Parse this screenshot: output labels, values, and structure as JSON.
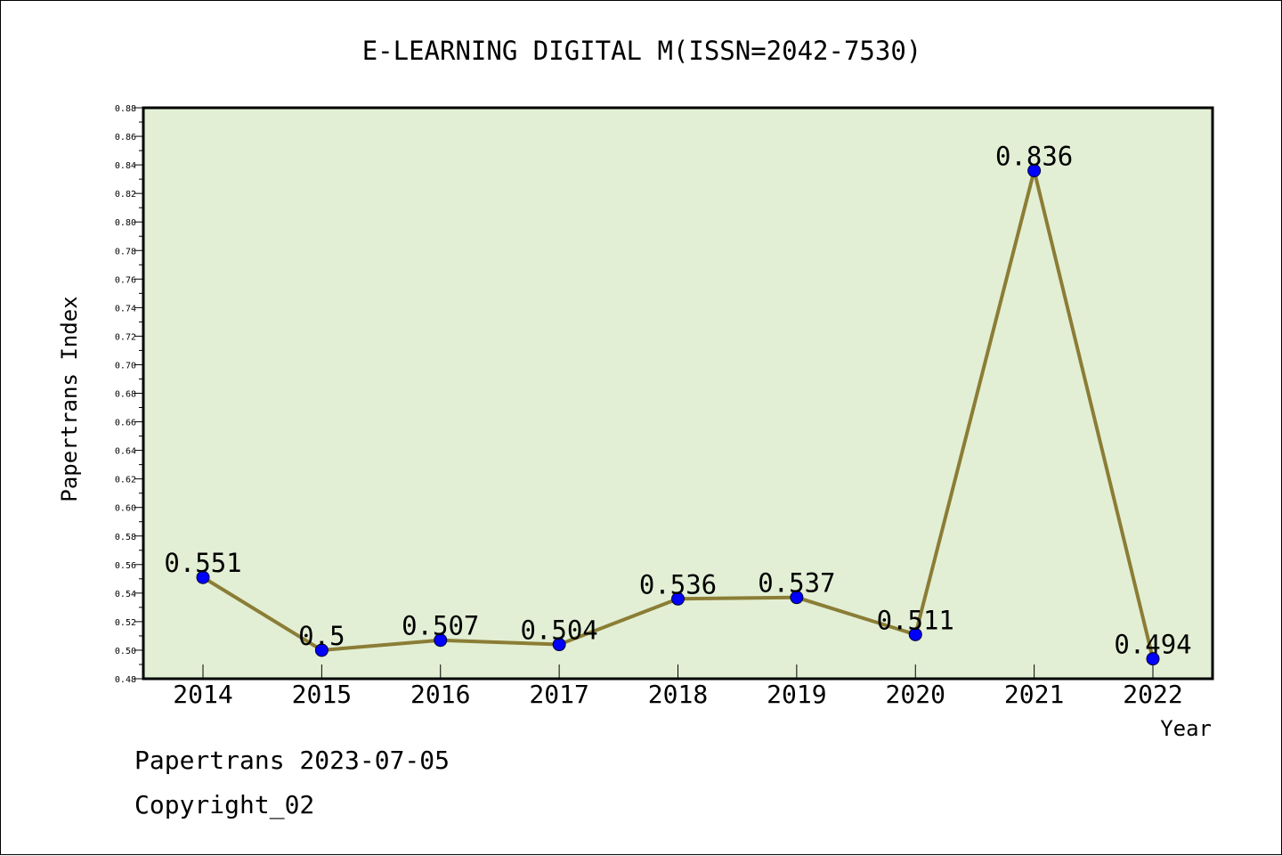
{
  "chart_data": {
    "type": "line",
    "title": "E-LEARNING DIGITAL M(ISSN=2042-7530)",
    "xlabel": "Year",
    "ylabel": "Papertrans Index",
    "categories": [
      "2014",
      "2015",
      "2016",
      "2017",
      "2018",
      "2019",
      "2020",
      "2021",
      "2022"
    ],
    "series": [
      {
        "values": [
          0.551,
          0.5,
          0.507,
          0.504,
          0.536,
          0.537,
          0.511,
          0.836,
          0.494
        ],
        "labels": [
          "0.551",
          "0.5",
          "0.507",
          "0.504",
          "0.536",
          "0.537",
          "0.511",
          "0.836",
          "0.494"
        ]
      }
    ],
    "ylim": [
      0.48,
      0.88
    ],
    "yticks": [
      "0.48",
      "0.50",
      "0.52",
      "0.54",
      "0.56",
      "0.58",
      "0.60",
      "0.62",
      "0.64",
      "0.66",
      "0.68",
      "0.70",
      "0.72",
      "0.74",
      "0.76",
      "0.78",
      "0.80",
      "0.82",
      "0.84",
      "0.86",
      "0.88"
    ],
    "grid": false,
    "colors": {
      "plot_background": "#e2efd4",
      "line": "#8b7d36",
      "marker": "#0000ff"
    }
  },
  "footer": {
    "line1": "Papertrans 2023-07-05",
    "line2": "Copyright_02"
  }
}
